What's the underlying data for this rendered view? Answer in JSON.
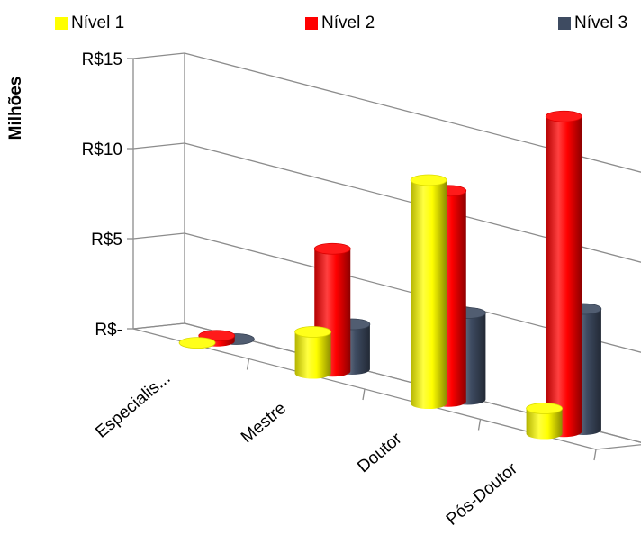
{
  "chart_data": {
    "type": "bar",
    "title": "",
    "xlabel": "",
    "ylabel": "Milhões",
    "ylim": [
      0,
      15
    ],
    "yticks": [
      {
        "value": 0,
        "label": "R$-"
      },
      {
        "value": 5,
        "label": "R$5"
      },
      {
        "value": 10,
        "label": "R$10"
      },
      {
        "value": 15,
        "label": "R$15"
      }
    ],
    "categories": [
      "Especialis...",
      "Mestre",
      "Doutor",
      "Pós-Doutor"
    ],
    "series": [
      {
        "name": "Nível 1",
        "color": "#FFFF00",
        "values": [
          0.02,
          2.3,
          12.4,
          1.4
        ]
      },
      {
        "name": "Nível 2",
        "color": "#FF0000",
        "values": [
          0.3,
          6.8,
          11.7,
          17.5
        ]
      },
      {
        "name": "Nível 3",
        "color": "#3E4B61",
        "values": [
          0.0,
          2.5,
          4.8,
          6.7
        ]
      }
    ],
    "legend_position": "top",
    "grid": true,
    "style": "3d-cylinder"
  }
}
